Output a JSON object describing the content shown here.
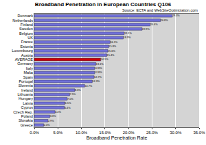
{
  "chart_data": {
    "type": "bar",
    "orientation": "horizontal",
    "title": "Broadband Penetration in European Countries Q106",
    "subtitle": "Source: ECTA and WebSiteOptimization.com",
    "x_label": "Broadband Penetration Rate",
    "categories": [
      "Denmark",
      "Netherlands",
      "Finland",
      "Sweden",
      "Belgium",
      "UK",
      "France",
      "Estonia",
      "Luxembourg",
      "Austria",
      "AVERAGE",
      "Germany",
      "Italy",
      "Malta",
      "Spain",
      "Portugal",
      "Slovenia",
      "Ireland",
      "Lithuania",
      "Hungary",
      "Latvia",
      "Cyprus",
      "Czech Rep.",
      "Poland",
      "Slovakia",
      "Greece"
    ],
    "values": [
      29.3,
      26.8,
      24.6,
      22.9,
      19.1,
      18.9,
      16.1,
      15.8,
      15.6,
      15.4,
      14.1,
      13.1,
      12.8,
      12.8,
      12.7,
      12.3,
      10.7,
      8.6,
      7.5,
      7.0,
      6.5,
      6.4,
      4.4,
      3.3,
      2.9,
      2.0
    ],
    "value_labels": [
      "29.3%",
      "26.8%",
      "24.6%",
      "22.9%",
      "19.1%",
      "18.9%",
      "16.1%",
      "15.8%",
      "15.6%",
      "15.4%",
      "14.1%",
      "13.1%",
      "12.8%",
      "12.8%",
      "12.7%",
      "12.3%",
      "10.7%",
      "8.6%",
      "7.5%",
      "7.0%",
      "6.5%",
      "6.4%",
      "4.4%",
      "3.3%",
      "2.9%",
      "2.0%"
    ],
    "data_labels": true,
    "colors": [
      "#7070d8",
      "#7070d8",
      "#7070d8",
      "#7070d8",
      "#7070d8",
      "#7070d8",
      "#7070d8",
      "#7070d8",
      "#7070d8",
      "#7070d8",
      "#cc0000",
      "#7070d8",
      "#7070d8",
      "#7070d8",
      "#7070d8",
      "#7070d8",
      "#7070d8",
      "#7070d8",
      "#7070d8",
      "#7070d8",
      "#7070d8",
      "#7070d8",
      "#7070d8",
      "#7070d8",
      "#7070d8",
      "#7070d8"
    ],
    "xlim": [
      0,
      35
    ],
    "xticks": [
      {
        "value": 0,
        "label": "0.0%"
      },
      {
        "value": 5,
        "label": "5.0%"
      },
      {
        "value": 10,
        "label": "10.0%"
      },
      {
        "value": 15,
        "label": "15.0%"
      },
      {
        "value": 20,
        "label": "20.0%"
      },
      {
        "value": 25,
        "label": "25.0%"
      },
      {
        "value": 30,
        "label": "30.0%"
      },
      {
        "value": 35,
        "label": "35.0%"
      }
    ],
    "grid": true
  }
}
